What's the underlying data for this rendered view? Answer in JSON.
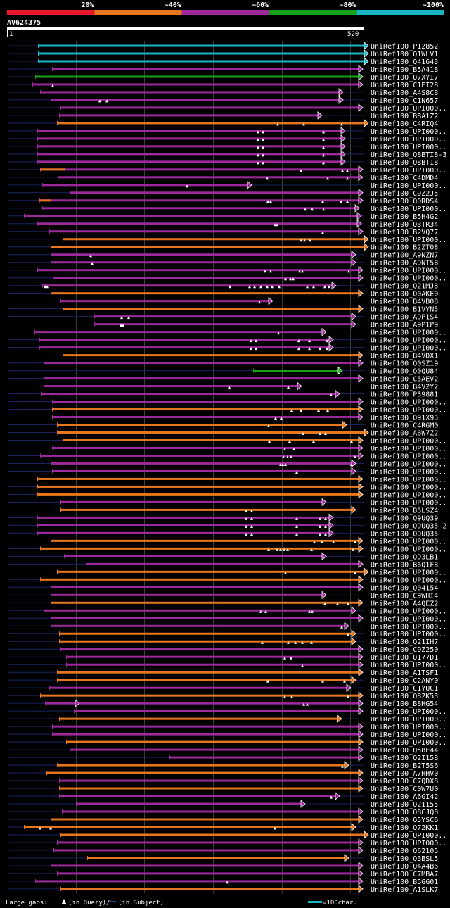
{
  "chart_data": {
    "type": "blast-hit-map",
    "query": {
      "name": "AV624375",
      "start_label": "1",
      "end_label": "520",
      "length": 520
    },
    "identity_legend": [
      {
        "label": "20%",
        "color": "#e8192c"
      },
      {
        "label": "~40%",
        "color": "#e8761c"
      },
      {
        "label": "~60%",
        "color": "#9c2a9c"
      },
      {
        "label": "~80%",
        "color": "#16a316"
      },
      {
        "label": "~100%",
        "color": "#19b5c3"
      }
    ],
    "colors": {
      "cyan": "#19b5c3",
      "green": "#16a316",
      "purple": "#9c2a9c",
      "orange": "#e8761c",
      "grid": "#3a3a3a",
      "ext": "#1a2560"
    },
    "footer": {
      "gaps_text": "Large gaps: ",
      "in_query": "(in Query)/",
      "in_subject": "(in Subject)",
      "scale_label": "=100char."
    },
    "hits": [
      {
        "id": "UniRef100_P12852",
        "c": "c",
        "s": 54,
        "e": 518,
        "g": []
      },
      {
        "id": "UniRef100_Q1WLV1",
        "c": "c",
        "s": 54,
        "e": 518,
        "g": []
      },
      {
        "id": "UniRef100_Q41643",
        "c": "c",
        "s": 54,
        "e": 518,
        "g": []
      },
      {
        "id": "UniRef100_B5A418",
        "c": "p",
        "s": 74,
        "e": 510,
        "g": []
      },
      {
        "id": "UniRef100_Q7XYI7",
        "c": "g",
        "s": 50,
        "e": 510,
        "g": []
      },
      {
        "id": "UniRef100_C1EI28",
        "c": "p",
        "s": 46,
        "e": 510,
        "g": [
          75
        ]
      },
      {
        "id": "UniRef100_A4S8C8",
        "c": "p",
        "s": 57,
        "e": 482,
        "g": []
      },
      {
        "id": "UniRef100_C1N657",
        "c": "p",
        "s": 72,
        "e": 482,
        "g": [
          142,
          152
        ]
      },
      {
        "id": "UniRef100_UPI000..",
        "c": "p",
        "s": 86,
        "e": 510,
        "g": []
      },
      {
        "id": "UniRef100_B8A1Z2",
        "c": "p",
        "s": 84,
        "e": 452,
        "g": []
      },
      {
        "id": "UniRef100_C4RIQ4",
        "c": "o",
        "s": 81,
        "e": 518,
        "g": [
          395,
          432,
          486
        ]
      },
      {
        "id": "UniRef100_UPI000..",
        "c": "p",
        "s": 53,
        "e": 485,
        "g": [
          367,
          374,
          460
        ]
      },
      {
        "id": "UniRef100_UPI000..",
        "c": "p",
        "s": 53,
        "e": 485,
        "g": [
          367,
          374,
          460
        ]
      },
      {
        "id": "UniRef100_UPI000..",
        "c": "p",
        "s": 53,
        "e": 485,
        "g": [
          367,
          374,
          460
        ]
      },
      {
        "id": "UniRef100_Q8BTI8-3",
        "c": "p",
        "s": 53,
        "e": 485,
        "g": [
          367,
          374,
          460
        ]
      },
      {
        "id": "UniRef100_Q8BTI8",
        "c": "p",
        "s": 53,
        "e": 485,
        "g": [
          367,
          374,
          460
        ]
      },
      {
        "id": "UniRef100_UPI000..",
        "c": "p",
        "s": 57,
        "e": 510,
        "g": [
          428,
          487,
          494
        ],
        "o": [
          57,
          92
        ]
      },
      {
        "id": "UniRef100_C4DMD4",
        "c": "p",
        "s": 82,
        "e": 510,
        "g": [
          380,
          466,
          494
        ]
      },
      {
        "id": "UniRef100_UPI000..",
        "c": "p",
        "s": 60,
        "e": 352,
        "g": [
          266
        ]
      },
      {
        "id": "UniRef100_C9Z2J5",
        "c": "p",
        "s": 99,
        "e": 510,
        "g": []
      },
      {
        "id": "UniRef100_Q0RDS4",
        "c": "p",
        "s": 56,
        "e": 510,
        "g": [
          381,
          385,
          459,
          485,
          494
        ],
        "o": [
          56,
          72
        ]
      },
      {
        "id": "UniRef100_UPI000..",
        "c": "p",
        "s": 60,
        "e": 505,
        "g": [
          434,
          444,
          460
        ]
      },
      {
        "id": "UniRef100_B5H4G2",
        "c": "p",
        "s": 34,
        "e": 508,
        "g": []
      },
      {
        "id": "UniRef100_Q3TR34",
        "c": "p",
        "s": 53,
        "e": 508,
        "g": [
          391,
          394
        ]
      },
      {
        "id": "UniRef100_B2VQ77",
        "c": "p",
        "s": 70,
        "e": 510,
        "g": [
          459
        ]
      },
      {
        "id": "UniRef100_UPI000..",
        "c": "o",
        "s": 89,
        "e": 518,
        "g": [
          428,
          433,
          441
        ]
      },
      {
        "id": "UniRef100_B2ZT08",
        "c": "o",
        "s": 72,
        "e": 518,
        "g": []
      },
      {
        "id": "UniRef100_A9NZN7",
        "c": "p",
        "s": 72,
        "e": 500,
        "g": [
          129
        ]
      },
      {
        "id": "UniRef100_A9NT58",
        "c": "p",
        "s": 72,
        "e": 500,
        "g": [
          131
        ]
      },
      {
        "id": "UniRef100_UPI000..",
        "c": "p",
        "s": 53,
        "e": 510,
        "g": [
          377,
          385,
          426,
          430,
          496
        ]
      },
      {
        "id": "UniRef100_UPI000..",
        "c": "p",
        "s": 75,
        "e": 510,
        "g": [
          406,
          413,
          417
        ]
      },
      {
        "id": "UniRef100_Q21MJ3",
        "c": "p",
        "s": 60,
        "e": 472,
        "g": [
          64,
          67,
          327,
          355,
          362,
          371,
          380,
          387,
          397,
          437,
          446,
          462,
          468
        ]
      },
      {
        "id": "UniRef100_Q0AKE0",
        "c": "o",
        "s": 72,
        "e": 510,
        "g": []
      },
      {
        "id": "UniRef100_B4VB08",
        "c": "p",
        "s": 86,
        "e": 382,
        "g": [
          369
        ]
      },
      {
        "id": "UniRef100_B1VYN5",
        "c": "o",
        "s": 89,
        "e": 510,
        "g": []
      },
      {
        "id": "UniRef100_A9P1S4",
        "c": "p",
        "s": 134,
        "e": 500,
        "g": [
          173,
          183
        ]
      },
      {
        "id": "UniRef100_A9P1P9",
        "c": "p",
        "s": 134,
        "e": 500,
        "g": [
          172,
          175
        ]
      },
      {
        "id": "UniRef100_UPI000..",
        "c": "p",
        "s": 49,
        "e": 458,
        "g": [
          396
        ]
      },
      {
        "id": "UniRef100_UPI000..",
        "c": "p",
        "s": 56,
        "e": 468,
        "g": [
          357,
          364,
          425,
          440,
          465
        ]
      },
      {
        "id": "UniRef100_UPI000..",
        "c": "p",
        "s": 56,
        "e": 468,
        "g": [
          357,
          364,
          425,
          440,
          455,
          465
        ]
      },
      {
        "id": "UniRef100_B4VDX1",
        "c": "o",
        "s": 89,
        "e": 510,
        "g": []
      },
      {
        "id": "UniRef100_Q0SZ19",
        "c": "p",
        "s": 62,
        "e": 510,
        "g": []
      },
      {
        "id": "UniRef100_Q0QU84",
        "c": "g",
        "s": 360,
        "e": 481,
        "g": []
      },
      {
        "id": "UniRef100_C5AEV2",
        "c": "p",
        "s": 62,
        "e": 510,
        "g": []
      },
      {
        "id": "UniRef100_B4V2Y2",
        "c": "p",
        "s": 62,
        "e": 423,
        "g": [
          326,
          410
        ]
      },
      {
        "id": "UniRef100_P39881",
        "c": "p",
        "s": 59,
        "e": 477,
        "g": [
          471
        ]
      },
      {
        "id": "UniRef100_UPI000..",
        "c": "p",
        "s": 74,
        "e": 510,
        "g": []
      },
      {
        "id": "UniRef100_UPI000..",
        "c": "o",
        "s": 74,
        "e": 510,
        "g": [
          415,
          428,
          453,
          466
        ]
      },
      {
        "id": "UniRef100_Q91X93",
        "c": "p",
        "s": 74,
        "e": 510,
        "g": [
          392,
          400
        ]
      },
      {
        "id": "UniRef100_C4RGM0",
        "c": "o",
        "s": 81,
        "e": 487,
        "g": [
          382
        ]
      },
      {
        "id": "UniRef100_A6W7Z2",
        "c": "o",
        "s": 81,
        "e": 518,
        "g": [
          431,
          455,
          463
        ]
      },
      {
        "id": "UniRef100_UPI000..",
        "c": "o",
        "s": 89,
        "e": 510,
        "g": [
          383,
          412,
          446,
          500
        ]
      },
      {
        "id": "UniRef100_UPI000..",
        "c": "p",
        "s": 74,
        "e": 510,
        "g": [
          405,
          418
        ]
      },
      {
        "id": "UniRef100_UPI000..",
        "c": "p",
        "s": 57,
        "e": 510,
        "g": [
          403,
          409,
          414,
          505
        ]
      },
      {
        "id": "UniRef100_UPI000..",
        "c": "p",
        "s": 72,
        "e": 500,
        "g": [
          399,
          402,
          406,
          500
        ]
      },
      {
        "id": "UniRef100_UPI000..",
        "c": "p",
        "s": 74,
        "e": 500,
        "g": [
          422
        ]
      },
      {
        "id": "UniRef100_UPI000..",
        "c": "o",
        "s": 53,
        "e": 510,
        "g": []
      },
      {
        "id": "UniRef100_UPI000..",
        "c": "o",
        "s": 53,
        "e": 510,
        "g": []
      },
      {
        "id": "UniRef100_UPI000..",
        "c": "o",
        "s": 53,
        "e": 510,
        "g": []
      },
      {
        "id": "UniRef100_UPI000..",
        "c": "p",
        "s": 86,
        "e": 458,
        "g": []
      },
      {
        "id": "UniRef100_B5LSZ4",
        "c": "o",
        "s": 86,
        "e": 500,
        "g": [
          350,
          358
        ]
      },
      {
        "id": "UniRef100_Q9UQ39",
        "c": "p",
        "s": 53,
        "e": 468,
        "g": [
          350,
          358,
          422,
          455,
          463
        ]
      },
      {
        "id": "UniRef100_Q9UQ35-2",
        "c": "p",
        "s": 53,
        "e": 468,
        "g": [
          350,
          358,
          422,
          455,
          463
        ]
      },
      {
        "id": "UniRef100_Q9UQ35",
        "c": "p",
        "s": 53,
        "e": 468,
        "g": [
          350,
          358,
          422,
          455,
          463
        ]
      },
      {
        "id": "UniRef100_UPI000..",
        "c": "o",
        "s": 72,
        "e": 510,
        "g": [
          447,
          458,
          474,
          505
        ]
      },
      {
        "id": "UniRef100_UPI000..",
        "c": "o",
        "s": 57,
        "e": 510,
        "g": [
          382,
          394,
          399,
          404,
          409,
          443,
          502
        ]
      },
      {
        "id": "UniRef100_Q93LB1",
        "c": "p",
        "s": 91,
        "e": 458,
        "g": []
      },
      {
        "id": "UniRef100_B6Q1F8",
        "c": "p",
        "s": 122,
        "e": 510,
        "g": []
      },
      {
        "id": "UniRef100_UPI000..",
        "c": "o",
        "s": 81,
        "e": 518,
        "g": [
          406,
          505
        ]
      },
      {
        "id": "UniRef100_UPI000..",
        "c": "o",
        "s": 57,
        "e": 510,
        "g": []
      },
      {
        "id": "UniRef100_Q04154",
        "c": "p",
        "s": 72,
        "e": 510,
        "g": []
      },
      {
        "id": "UniRef100_C9WHI4",
        "c": "p",
        "s": 72,
        "e": 458,
        "g": []
      },
      {
        "id": "UniRef100_A4QEZ2",
        "c": "o",
        "s": 72,
        "e": 510,
        "g": [
          462,
          480,
          495
        ]
      },
      {
        "id": "UniRef100_UPI000..",
        "c": "p",
        "s": 62,
        "e": 500,
        "g": [
          371,
          378,
          440,
          444
        ]
      },
      {
        "id": "UniRef100_UPI000..",
        "c": "p",
        "s": 72,
        "e": 510,
        "g": []
      },
      {
        "id": "UniRef100_UPI000..",
        "c": "p",
        "s": 72,
        "e": 490,
        "g": [
          486
        ]
      },
      {
        "id": "UniRef100_UPI000..",
        "c": "o",
        "s": 84,
        "e": 500,
        "g": [
          495
        ]
      },
      {
        "id": "UniRef100_Q21IH7",
        "c": "o",
        "s": 84,
        "e": 500,
        "g": [
          373,
          410,
          420,
          430,
          443
        ]
      },
      {
        "id": "UniRef100_C9Z250",
        "c": "p",
        "s": 86,
        "e": 510,
        "g": []
      },
      {
        "id": "UniRef100_Q177D1",
        "c": "p",
        "s": 94,
        "e": 510,
        "g": [
          405,
          414
        ]
      },
      {
        "id": "UniRef100_UPI000..",
        "c": "p",
        "s": 94,
        "e": 510,
        "g": [
          430
        ]
      },
      {
        "id": "UniRef100_A1TSF1",
        "c": "o",
        "s": 81,
        "e": 510,
        "g": []
      },
      {
        "id": "UniRef100_C2ANY0",
        "c": "o",
        "s": 81,
        "e": 500,
        "g": [
          381,
          459,
          490
        ]
      },
      {
        "id": "UniRef100_C1YUC1",
        "c": "p",
        "s": 70,
        "e": 493,
        "g": []
      },
      {
        "id": "UniRef100_Q82K53",
        "c": "o",
        "s": 57,
        "e": 510,
        "g": [
          405,
          415,
          495
        ]
      },
      {
        "id": "UniRef100_B8HG54",
        "c": "p",
        "s": 64,
        "e": 510,
        "g": [
          432,
          437
        ],
        "a": 107
      },
      {
        "id": "UniRef100_UPI000..",
        "c": "p",
        "s": 105,
        "e": 510,
        "g": []
      },
      {
        "id": "UniRef100_UPI000..",
        "c": "o",
        "s": 84,
        "e": 480,
        "g": []
      },
      {
        "id": "UniRef100_UPI000..",
        "c": "p",
        "s": 74,
        "e": 510,
        "g": []
      },
      {
        "id": "UniRef100_UPI000..",
        "c": "p",
        "s": 74,
        "e": 510,
        "g": []
      },
      {
        "id": "UniRef100_UPI000..",
        "c": "o",
        "s": 94,
        "e": 510,
        "g": []
      },
      {
        "id": "UniRef100_Q58E44",
        "c": "p",
        "s": 99,
        "e": 510,
        "g": []
      },
      {
        "id": "UniRef100_Q2I158",
        "c": "p",
        "s": 241,
        "e": 510,
        "g": []
      },
      {
        "id": "UniRef100_B2T5S6",
        "c": "o",
        "s": 81,
        "e": 490,
        "g": [
          487
        ]
      },
      {
        "id": "UniRef100_A7HHV0",
        "c": "o",
        "s": 66,
        "e": 510,
        "g": []
      },
      {
        "id": "UniRef100_C7QDX8",
        "c": "p",
        "s": 84,
        "e": 510,
        "g": []
      },
      {
        "id": "UniRef100_C0W7U0",
        "c": "o",
        "s": 84,
        "e": 510,
        "g": []
      },
      {
        "id": "UniRef100_A6GI42",
        "c": "p",
        "s": 84,
        "e": 477,
        "g": [
          471
        ]
      },
      {
        "id": "UniRef100_Q21155",
        "c": "p",
        "s": 108,
        "e": 428,
        "g": []
      },
      {
        "id": "UniRef100_Q8CJQ8",
        "c": "p",
        "s": 88,
        "e": 510,
        "g": []
      },
      {
        "id": "UniRef100_Q5YSC6",
        "c": "o",
        "s": 72,
        "e": 510,
        "g": []
      },
      {
        "id": "UniRef100_Q72KK1",
        "c": "o",
        "s": 34,
        "e": 500,
        "g": [
          57,
          72,
          391
        ]
      },
      {
        "id": "UniRef100_UPI000..",
        "c": "o",
        "s": 86,
        "e": 518,
        "g": []
      },
      {
        "id": "UniRef100_UPI000..",
        "c": "p",
        "s": 81,
        "e": 510,
        "g": []
      },
      {
        "id": "UniRef100_Q62105",
        "c": "p",
        "s": 76,
        "e": 510,
        "g": []
      },
      {
        "id": "UniRef100_Q3BSL5",
        "c": "o",
        "s": 124,
        "e": 490,
        "g": []
      },
      {
        "id": "UniRef100_Q4A4B6",
        "c": "p",
        "s": 72,
        "e": 510,
        "g": []
      },
      {
        "id": "UniRef100_C7MBA7",
        "c": "p",
        "s": 81,
        "e": 510,
        "g": []
      },
      {
        "id": "UniRef100_B5GG01",
        "c": "p",
        "s": 50,
        "e": 510,
        "g": [
          323
        ]
      },
      {
        "id": "UniRef100_A1SLK7",
        "c": "o",
        "s": 86,
        "e": 510,
        "g": []
      }
    ]
  }
}
